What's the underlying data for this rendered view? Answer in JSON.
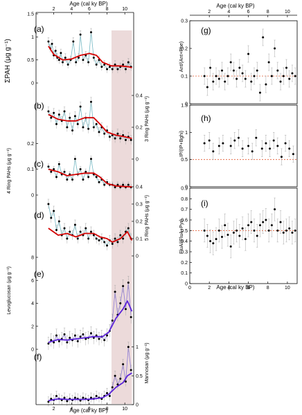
{
  "colors": {
    "shade": "#ecdada",
    "trend": "#d40000",
    "trend_biomass": "#5b22d8",
    "cyan_line": "#74b8c4",
    "points": "#000000",
    "ref_line": "#e2572d",
    "error_bars": "#a8a8a8"
  },
  "chart_data": [
    {
      "type": "scatter",
      "panel": "(a)",
      "xlabel": "Age (cal ky BP)",
      "ylabel": "ΣPAH (μg g⁻¹)",
      "xlim": [
        0,
        11
      ],
      "xticks": [
        2,
        4,
        6,
        8,
        10
      ],
      "ylim": [
        0,
        1.2
      ],
      "yticks": [
        0,
        0.5,
        1.0,
        1.5
      ],
      "shaded_interval": [
        8.5,
        10.8
      ],
      "x": [
        1.4,
        1.6,
        1.8,
        2.0,
        2.2,
        2.4,
        2.6,
        2.8,
        3.0,
        3.3,
        3.6,
        3.9,
        4.2,
        4.5,
        4.8,
        5.0,
        5.3,
        5.6,
        5.9,
        6.2,
        6.5,
        6.8,
        7.1,
        7.4,
        7.7,
        8.0,
        8.3,
        8.6,
        8.9,
        9.2,
        9.5,
        9.8,
        10.1,
        10.4,
        10.7
      ],
      "values": [
        0.9,
        0.75,
        0.85,
        0.6,
        0.7,
        0.55,
        0.5,
        0.65,
        0.45,
        0.55,
        0.4,
        0.5,
        0.9,
        0.45,
        0.55,
        1.05,
        0.5,
        0.6,
        0.45,
        1.1,
        0.55,
        0.4,
        0.5,
        0.35,
        0.4,
        0.3,
        0.35,
        0.3,
        0.4,
        0.3,
        0.35,
        0.4,
        0.3,
        0.45,
        0.35
      ],
      "trend_x": [
        1.4,
        2.0,
        3.0,
        4.0,
        5.0,
        6.0,
        6.8,
        7.5,
        8.5,
        9.5,
        10.5,
        10.8
      ],
      "trend": [
        0.8,
        0.62,
        0.5,
        0.52,
        0.6,
        0.64,
        0.6,
        0.45,
        0.37,
        0.37,
        0.35,
        0.33
      ]
    },
    {
      "type": "scatter",
      "panel": "(b)",
      "ylabel": "3 Ring PAHs (μg g⁻¹)",
      "ylim": [
        0,
        0.4
      ],
      "yticks": [
        0.0,
        0.2,
        0.4
      ],
      "x": [
        1.4,
        1.7,
        2.0,
        2.3,
        2.6,
        2.9,
        3.2,
        3.5,
        3.8,
        4.1,
        4.4,
        4.7,
        5.0,
        5.3,
        5.6,
        5.9,
        6.2,
        6.5,
        6.8,
        7.1,
        7.4,
        7.7,
        8.0,
        8.3,
        8.6,
        8.9,
        9.2,
        9.5,
        9.8,
        10.1,
        10.4,
        10.7
      ],
      "values": [
        0.3,
        0.26,
        0.29,
        0.22,
        0.28,
        0.24,
        0.3,
        0.2,
        0.26,
        0.18,
        0.27,
        0.22,
        0.33,
        0.2,
        0.26,
        0.19,
        0.36,
        0.2,
        0.22,
        0.17,
        0.2,
        0.16,
        0.18,
        0.14,
        0.15,
        0.13,
        0.16,
        0.13,
        0.15,
        0.12,
        0.14,
        0.12
      ],
      "trend_x": [
        1.4,
        2.5,
        3.5,
        4.5,
        5.5,
        6.5,
        7.2,
        8.0,
        9.0,
        10.0,
        10.8
      ],
      "trend": [
        0.28,
        0.25,
        0.24,
        0.24,
        0.26,
        0.26,
        0.22,
        0.17,
        0.15,
        0.14,
        0.13
      ]
    },
    {
      "type": "scatter",
      "panel": "(c)",
      "ylabel": "4 Ring PAHs (μg g⁻¹)",
      "ylim": [
        0,
        0.15
      ],
      "yticks": [
        0.0,
        0.1,
        0.2
      ],
      "x": [
        1.4,
        1.7,
        2.0,
        2.3,
        2.6,
        2.9,
        3.2,
        3.5,
        3.8,
        4.1,
        4.4,
        4.7,
        5.0,
        5.3,
        5.6,
        5.9,
        6.2,
        6.5,
        6.8,
        7.1,
        7.4,
        7.7,
        8.0,
        8.3,
        8.6,
        8.9,
        9.2,
        9.5,
        9.8,
        10.1,
        10.4,
        10.7
      ],
      "values": [
        0.11,
        0.09,
        0.1,
        0.07,
        0.12,
        0.08,
        0.09,
        0.06,
        0.08,
        0.06,
        0.14,
        0.08,
        0.1,
        0.06,
        0.09,
        0.07,
        0.14,
        0.08,
        0.07,
        0.05,
        0.06,
        0.04,
        0.05,
        0.04,
        0.04,
        0.03,
        0.04,
        0.03,
        0.04,
        0.03,
        0.04,
        0.03
      ],
      "trend_x": [
        1.4,
        2.5,
        3.5,
        4.5,
        5.5,
        6.5,
        7.2,
        8.0,
        9.0,
        10.0,
        10.8
      ],
      "trend": [
        0.1,
        0.09,
        0.075,
        0.08,
        0.085,
        0.085,
        0.07,
        0.045,
        0.035,
        0.033,
        0.032
      ]
    },
    {
      "type": "scatter",
      "panel": "(d)",
      "ylabel": "5 Ring PAHs (μg g⁻¹)",
      "ylim": [
        0,
        0.4
      ],
      "yticks": [
        0.0,
        0.1,
        0.2,
        0.3,
        0.4
      ],
      "x": [
        1.4,
        1.7,
        2.0,
        2.3,
        2.6,
        2.9,
        3.2,
        3.5,
        3.8,
        4.1,
        4.4,
        4.7,
        5.0,
        5.3,
        5.6,
        5.9,
        6.2,
        6.5,
        6.8,
        7.1,
        7.4,
        7.7,
        8.0,
        8.3,
        8.6,
        8.9,
        9.2,
        9.5,
        9.8,
        10.1,
        10.4,
        10.7
      ],
      "values": [
        0.3,
        0.22,
        0.26,
        0.15,
        0.2,
        0.12,
        0.16,
        0.1,
        0.14,
        0.12,
        0.18,
        0.1,
        0.14,
        0.12,
        0.16,
        0.1,
        0.14,
        0.12,
        0.1,
        0.09,
        0.1,
        0.08,
        0.06,
        0.09,
        0.07,
        0.1,
        0.08,
        0.12,
        0.1,
        0.14,
        0.16,
        0.1
      ],
      "trend_x": [
        1.4,
        2.5,
        3.5,
        4.5,
        5.5,
        6.5,
        7.2,
        8.0,
        8.6,
        9.5,
        10.3,
        10.8
      ],
      "trend": [
        0.16,
        0.12,
        0.13,
        0.11,
        0.13,
        0.13,
        0.11,
        0.1,
        0.08,
        0.1,
        0.14,
        0.09
      ]
    },
    {
      "type": "scatter",
      "panel": "(e)",
      "ylabel": "Levoglucosan (μg g⁻¹)",
      "ylim": [
        0,
        8
      ],
      "yticks": [
        0,
        2,
        4,
        6,
        8
      ],
      "x": [
        1.4,
        1.7,
        2.0,
        2.3,
        2.6,
        2.9,
        3.2,
        3.5,
        3.8,
        4.1,
        4.4,
        4.7,
        5.0,
        5.3,
        5.6,
        5.9,
        6.2,
        6.5,
        6.8,
        7.1,
        7.4,
        7.7,
        8.0,
        8.3,
        8.6,
        8.9,
        9.2,
        9.5,
        9.8,
        10.1,
        10.4,
        10.7
      ],
      "values": [
        0.5,
        0.8,
        0.6,
        1.2,
        0.7,
        0.9,
        1.3,
        0.6,
        1.0,
        0.8,
        1.2,
        0.7,
        1.1,
        1.3,
        0.9,
        1.0,
        1.4,
        1.0,
        1.2,
        0.9,
        1.1,
        0.8,
        1.2,
        1.6,
        2.5,
        5.0,
        3.0,
        4.0,
        5.5,
        3.5,
        5.8,
        2.8
      ],
      "trend_x": [
        1.4,
        2.5,
        3.5,
        4.5,
        5.5,
        6.5,
        7.5,
        8.2,
        9.0,
        9.8,
        10.3,
        10.8
      ],
      "trend": [
        0.6,
        0.85,
        0.8,
        0.9,
        1.0,
        1.1,
        1.1,
        1.5,
        2.7,
        3.5,
        4.2,
        3.3
      ]
    },
    {
      "type": "scatter",
      "panel": "(f)",
      "xlabel": "Age (cal ky BP)",
      "ylabel": "Mannosan (μg g⁻¹)",
      "ylim": [
        0,
        1.2
      ],
      "yticks": [
        0.0,
        0.5,
        1.0
      ],
      "x": [
        1.4,
        1.7,
        2.0,
        2.3,
        2.6,
        2.9,
        3.2,
        3.5,
        3.8,
        4.1,
        4.4,
        4.7,
        5.0,
        5.3,
        5.6,
        5.9,
        6.2,
        6.5,
        6.8,
        7.1,
        7.4,
        7.7,
        8.0,
        8.3,
        8.6,
        8.9,
        9.2,
        9.5,
        9.8,
        10.1,
        10.4,
        10.7
      ],
      "values": [
        0.05,
        0.1,
        0.08,
        0.15,
        0.1,
        0.08,
        0.12,
        0.06,
        0.1,
        0.08,
        0.12,
        0.1,
        0.07,
        0.12,
        0.1,
        0.08,
        0.12,
        0.1,
        0.15,
        0.12,
        0.1,
        0.15,
        0.2,
        0.15,
        0.3,
        0.5,
        0.35,
        0.45,
        0.7,
        0.4,
        1.0,
        0.6
      ],
      "trend_x": [
        1.4,
        2.5,
        3.5,
        4.5,
        5.5,
        6.5,
        7.5,
        8.2,
        9.0,
        9.8,
        10.3,
        10.8
      ],
      "trend": [
        0.07,
        0.1,
        0.09,
        0.09,
        0.09,
        0.1,
        0.12,
        0.18,
        0.3,
        0.38,
        0.5,
        0.55
      ]
    },
    {
      "type": "scatter",
      "panel": "(g)",
      "ylabel": "Ant/(Ant+Phe)",
      "xlim": [
        0,
        11
      ],
      "xticks": [
        2,
        4,
        6,
        8,
        10
      ],
      "ylim": [
        0,
        0.3
      ],
      "yticks": [
        0.0,
        0.1,
        0.2,
        0.3
      ],
      "reference_line": 0.1,
      "x": [
        1.5,
        1.8,
        2.1,
        2.4,
        2.7,
        3.0,
        3.3,
        3.6,
        3.9,
        4.2,
        4.5,
        4.8,
        5.1,
        5.4,
        5.7,
        6.0,
        6.3,
        6.6,
        6.9,
        7.2,
        7.5,
        7.8,
        8.1,
        8.4,
        8.7,
        9.0,
        9.3,
        9.6,
        9.9,
        10.2,
        10.5,
        10.8
      ],
      "values": [
        0.1,
        0.06,
        0.13,
        0.08,
        0.1,
        0.09,
        0.12,
        0.08,
        0.1,
        0.15,
        0.12,
        0.09,
        0.13,
        0.11,
        0.09,
        0.18,
        0.08,
        0.1,
        0.12,
        0.04,
        0.24,
        0.07,
        0.15,
        0.1,
        0.2,
        0.12,
        0.08,
        0.1,
        0.13,
        0.09,
        0.11,
        0.1
      ]
    },
    {
      "type": "scatter",
      "panel": "(h)",
      "ylabel": "IP/(IP+Bghi)",
      "ylim": [
        0,
        1.5
      ],
      "yticks": [
        0.0,
        0.5,
        1.0,
        1.5
      ],
      "reference_line": 0.5,
      "x": [
        1.5,
        2.0,
        2.4,
        3.0,
        3.4,
        4.2,
        4.6,
        5.0,
        5.4,
        6.0,
        6.4,
        6.8,
        7.4,
        7.8,
        8.2,
        8.6,
        9.0,
        9.4,
        9.8,
        10.2,
        10.6
      ],
      "values": [
        0.8,
        0.85,
        0.65,
        0.75,
        0.8,
        0.75,
        0.85,
        0.9,
        0.7,
        0.75,
        0.65,
        0.9,
        0.7,
        0.8,
        0.7,
        0.85,
        0.75,
        0.55,
        0.8,
        0.7,
        0.6
      ]
    },
    {
      "type": "scatter",
      "panel": "(i)",
      "xlabel": "Age (cal ky BP)",
      "ylabel": "FluA/(FluA+Pyr)",
      "xlim": [
        0,
        11
      ],
      "xticks": [
        0,
        2,
        4,
        6,
        8,
        10
      ],
      "ylim": [
        0,
        0.9
      ],
      "yticks": [
        0.0,
        0.1,
        0.2,
        0.3,
        0.4,
        0.5,
        0.6,
        0.7,
        0.8,
        0.9
      ],
      "reference_line": 0.5,
      "x": [
        1.5,
        1.8,
        2.1,
        2.4,
        2.7,
        3.0,
        3.3,
        3.6,
        3.9,
        4.2,
        4.5,
        4.8,
        5.1,
        5.4,
        5.7,
        6.0,
        6.3,
        6.6,
        6.9,
        7.2,
        7.5,
        7.8,
        8.1,
        8.4,
        8.7,
        9.0,
        9.3,
        9.6,
        9.9,
        10.2,
        10.5,
        10.8
      ],
      "values": [
        0.5,
        0.45,
        0.4,
        0.38,
        0.42,
        0.5,
        0.44,
        0.55,
        0.46,
        0.35,
        0.48,
        0.5,
        0.45,
        0.52,
        0.42,
        0.55,
        0.58,
        0.5,
        0.45,
        0.55,
        0.58,
        0.6,
        0.5,
        0.55,
        0.7,
        0.5,
        0.58,
        0.48,
        0.5,
        0.52,
        0.48,
        0.5
      ]
    }
  ]
}
